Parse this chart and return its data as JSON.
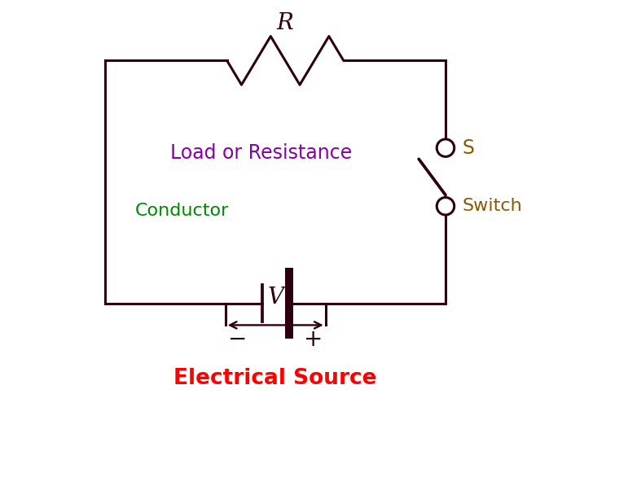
{
  "bg_color": "#ffffff",
  "circuit_color": "#2d0010",
  "line_width": 2.2,
  "resistor_label": "R",
  "resistor_label_color": "#2d0010",
  "voltage_label": "V",
  "switch_label": "S",
  "switch_label_color": "#8B5A00",
  "switch_text": "Switch",
  "switch_text_color": "#8B5A00",
  "conductor_label": "Conductor",
  "conductor_color": "#008800",
  "resistance_label": "Load or Resistance",
  "resistance_color": "#8800aa",
  "source_label": "Electrical Source",
  "source_color": "#ff0000",
  "minus_label": "−",
  "plus_label": "+",
  "figsize": [
    7.6,
    6.02
  ],
  "dpi": 100
}
